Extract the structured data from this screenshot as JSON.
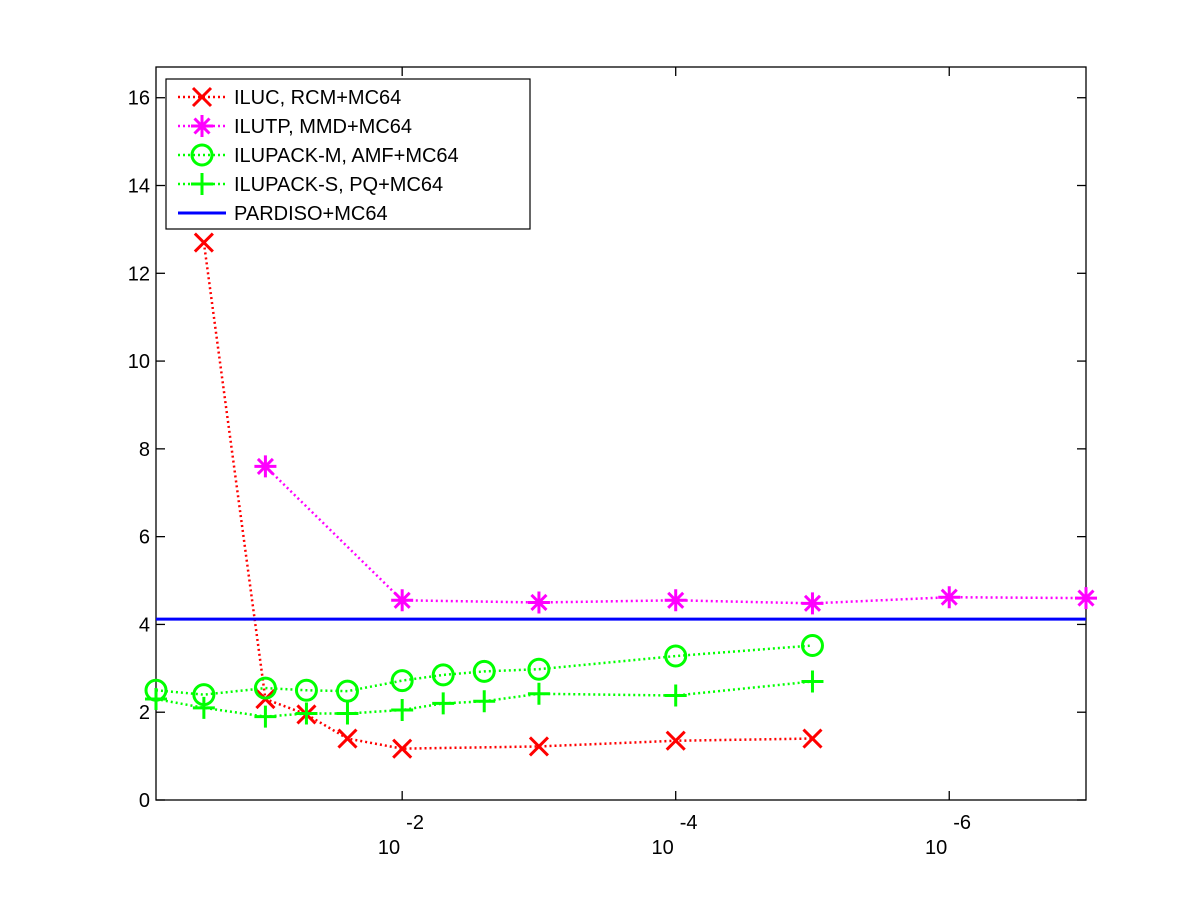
{
  "chart_data": {
    "type": "line",
    "title": "",
    "xlabel": "",
    "ylabel": "",
    "x_scale": "log-reversed",
    "xlim": [
      -0.2,
      -7
    ],
    "ylim": [
      0,
      16.7
    ],
    "y_ticks": [
      0,
      2,
      4,
      6,
      8,
      10,
      12,
      14,
      16
    ],
    "y_tick_labels": [
      "0",
      "2",
      "4",
      "6",
      "8",
      "10",
      "12",
      "14",
      "16"
    ],
    "x_ticks": [
      {
        "value": -2,
        "base": "10",
        "exponent": "-2"
      },
      {
        "value": -4,
        "base": "10",
        "exponent": "-4"
      },
      {
        "value": -6,
        "base": "10",
        "exponent": "-6"
      }
    ],
    "grid": false,
    "legend_position": "top-left",
    "series": [
      {
        "name": "ILUC, RCM+MC64",
        "color": "#ff0000",
        "marker": "x",
        "line_style": "dotted",
        "x": [
          -0.55,
          -1,
          -1.3,
          -1.6,
          -2,
          -3,
          -4,
          -5
        ],
        "y": [
          12.7,
          2.3,
          1.95,
          1.4,
          1.17,
          1.22,
          1.35,
          1.4
        ]
      },
      {
        "name": "ILUTP, MMD+MC64",
        "color": "#ff00ff",
        "marker": "asterisk",
        "line_style": "dotted",
        "x": [
          -1,
          -2,
          -3,
          -4,
          -5,
          -6,
          -7
        ],
        "y": [
          7.6,
          4.55,
          4.5,
          4.55,
          4.48,
          4.62,
          4.6
        ]
      },
      {
        "name": "ILUPACK-M, AMF+MC64",
        "color": "#00ff00",
        "marker": "circle",
        "line_style": "dotted",
        "x": [
          -0.2,
          -0.55,
          -1,
          -1.3,
          -1.6,
          -2,
          -2.3,
          -2.6,
          -3,
          -4,
          -5
        ],
        "y": [
          2.5,
          2.4,
          2.55,
          2.5,
          2.48,
          2.72,
          2.85,
          2.93,
          2.98,
          3.28,
          3.52
        ]
      },
      {
        "name": "ILUPACK-S, PQ+MC64",
        "color": "#00ff00",
        "marker": "plus",
        "line_style": "dotted",
        "x": [
          -0.2,
          -0.55,
          -1,
          -1.3,
          -1.6,
          -2,
          -2.3,
          -2.6,
          -3,
          -4,
          -5
        ],
        "y": [
          2.3,
          2.1,
          1.9,
          1.97,
          1.97,
          2.05,
          2.2,
          2.25,
          2.42,
          2.38,
          2.7
        ]
      },
      {
        "name": "PARDISO+MC64",
        "color": "#0000ff",
        "marker": "none",
        "line_style": "solid",
        "x": [
          -0.2,
          -7
        ],
        "y": [
          4.12,
          4.12
        ]
      }
    ]
  }
}
